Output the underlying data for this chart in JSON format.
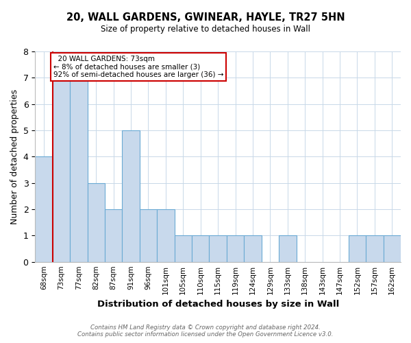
{
  "title1": "20, WALL GARDENS, GWINEAR, HAYLE, TR27 5HN",
  "title2": "Size of property relative to detached houses in Wall",
  "xlabel": "Distribution of detached houses by size in Wall",
  "ylabel": "Number of detached properties",
  "categories": [
    "68sqm",
    "73sqm",
    "77sqm",
    "82sqm",
    "87sqm",
    "91sqm",
    "96sqm",
    "101sqm",
    "105sqm",
    "110sqm",
    "115sqm",
    "119sqm",
    "124sqm",
    "129sqm",
    "133sqm",
    "138sqm",
    "143sqm",
    "147sqm",
    "152sqm",
    "157sqm",
    "162sqm"
  ],
  "values": [
    4,
    7,
    7,
    3,
    2,
    5,
    2,
    2,
    1,
    1,
    1,
    1,
    1,
    0,
    1,
    0,
    0,
    0,
    1,
    1,
    1
  ],
  "bar_color": "#c8d9ec",
  "bar_edge_color": "#6aaad4",
  "highlight_line_color": "#cc0000",
  "highlight_line_index": 1,
  "annotation_text": "  20 WALL GARDENS: 73sqm\n← 8% of detached houses are smaller (3)\n92% of semi-detached houses are larger (36) →",
  "annotation_box_color": "#ffffff",
  "annotation_box_edge": "#cc0000",
  "ylim": [
    0,
    8
  ],
  "yticks": [
    0,
    1,
    2,
    3,
    4,
    5,
    6,
    7,
    8
  ],
  "footer": "Contains HM Land Registry data © Crown copyright and database right 2024.\nContains public sector information licensed under the Open Government Licence v3.0.",
  "background_color": "#ffffff",
  "grid_color": "#c8d8e8",
  "figsize": [
    6.0,
    5.0
  ],
  "dpi": 100
}
